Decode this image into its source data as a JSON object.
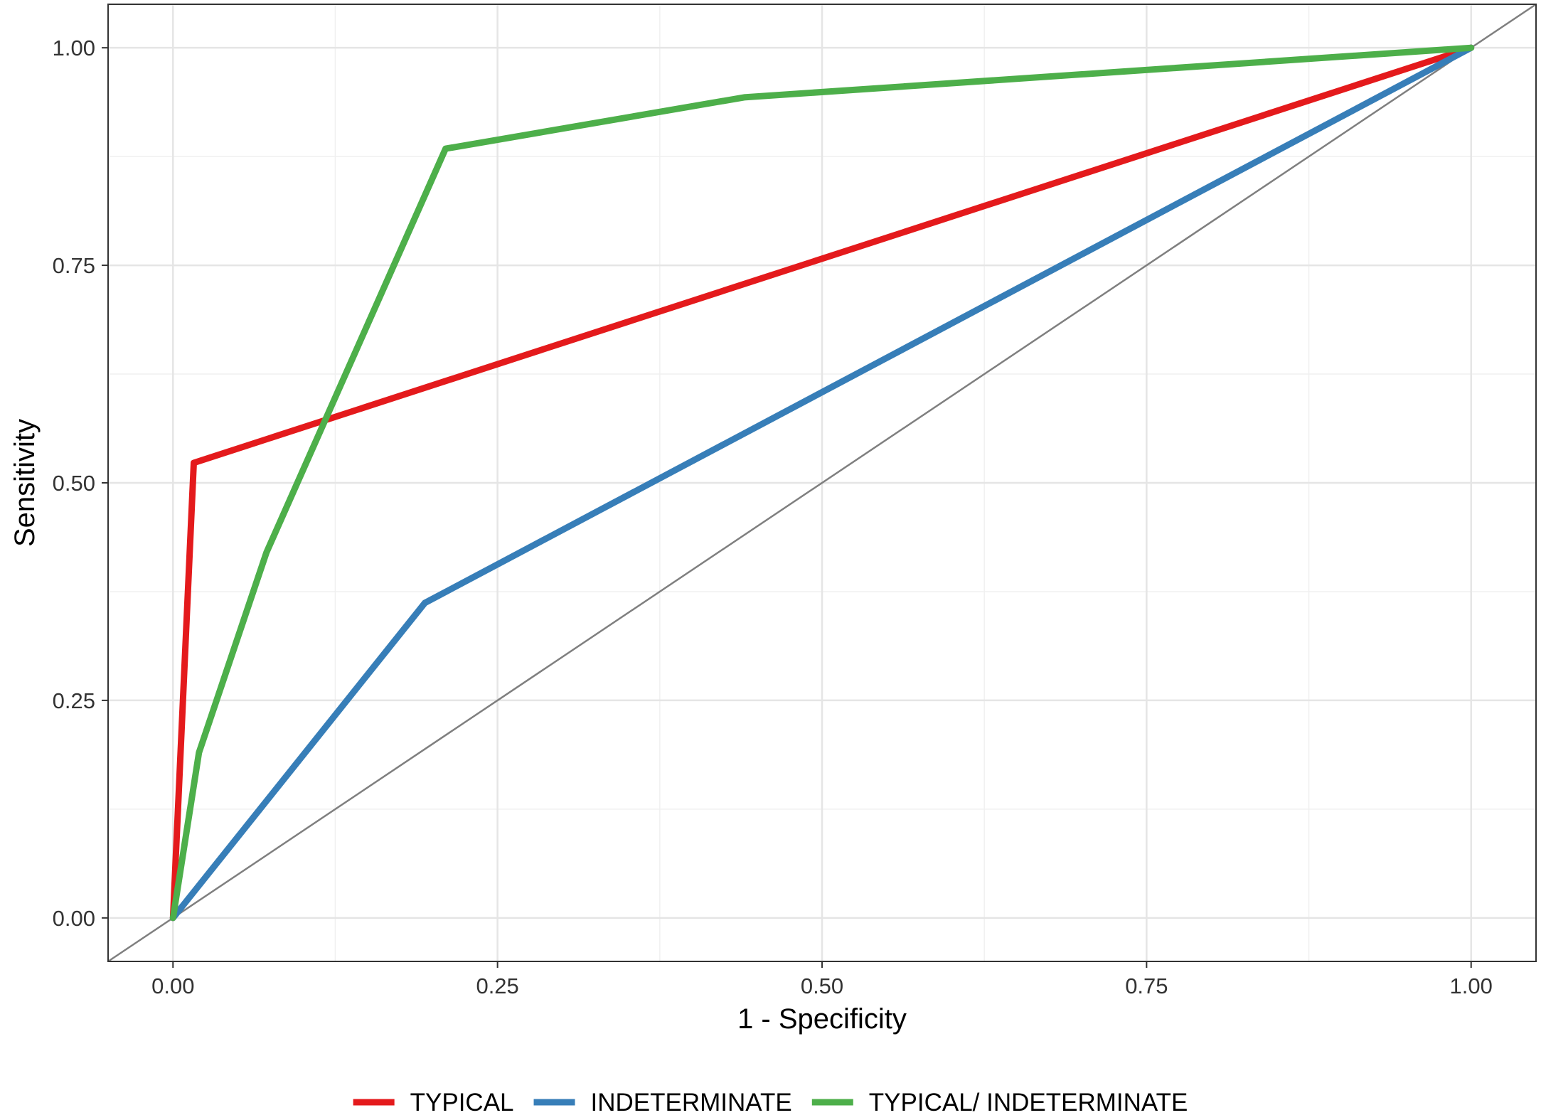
{
  "chart_data": {
    "type": "line",
    "title": "",
    "xlabel": "1 - Specificity",
    "ylabel": "Sensitivity",
    "xlim": [
      -0.05,
      1.05
    ],
    "ylim": [
      -0.05,
      1.05
    ],
    "x_ticks": [
      "0.00",
      "0.25",
      "0.50",
      "0.75",
      "1.00"
    ],
    "y_ticks": [
      "0.00",
      "0.25",
      "0.50",
      "0.75",
      "1.00"
    ],
    "grid": true,
    "reference_line": "diagonal",
    "legend_position": "bottom",
    "series": [
      {
        "name": "TYPICAL",
        "color": "#e41a1c",
        "points": [
          [
            0.0,
            0.0
          ],
          [
            0.016,
            0.523
          ],
          [
            1.0,
            1.0
          ]
        ]
      },
      {
        "name": "INDETERMINATE",
        "color": "#377eb8",
        "points": [
          [
            0.0,
            0.0
          ],
          [
            0.194,
            0.362
          ],
          [
            1.0,
            1.0
          ]
        ]
      },
      {
        "name": "TYPICAL/ INDETERMINATE",
        "color": "#4daf4a",
        "points": [
          [
            0.0,
            0.0
          ],
          [
            0.02,
            0.19
          ],
          [
            0.072,
            0.42
          ],
          [
            0.21,
            0.884
          ],
          [
            0.44,
            0.943
          ],
          [
            1.0,
            1.0
          ]
        ]
      }
    ]
  }
}
